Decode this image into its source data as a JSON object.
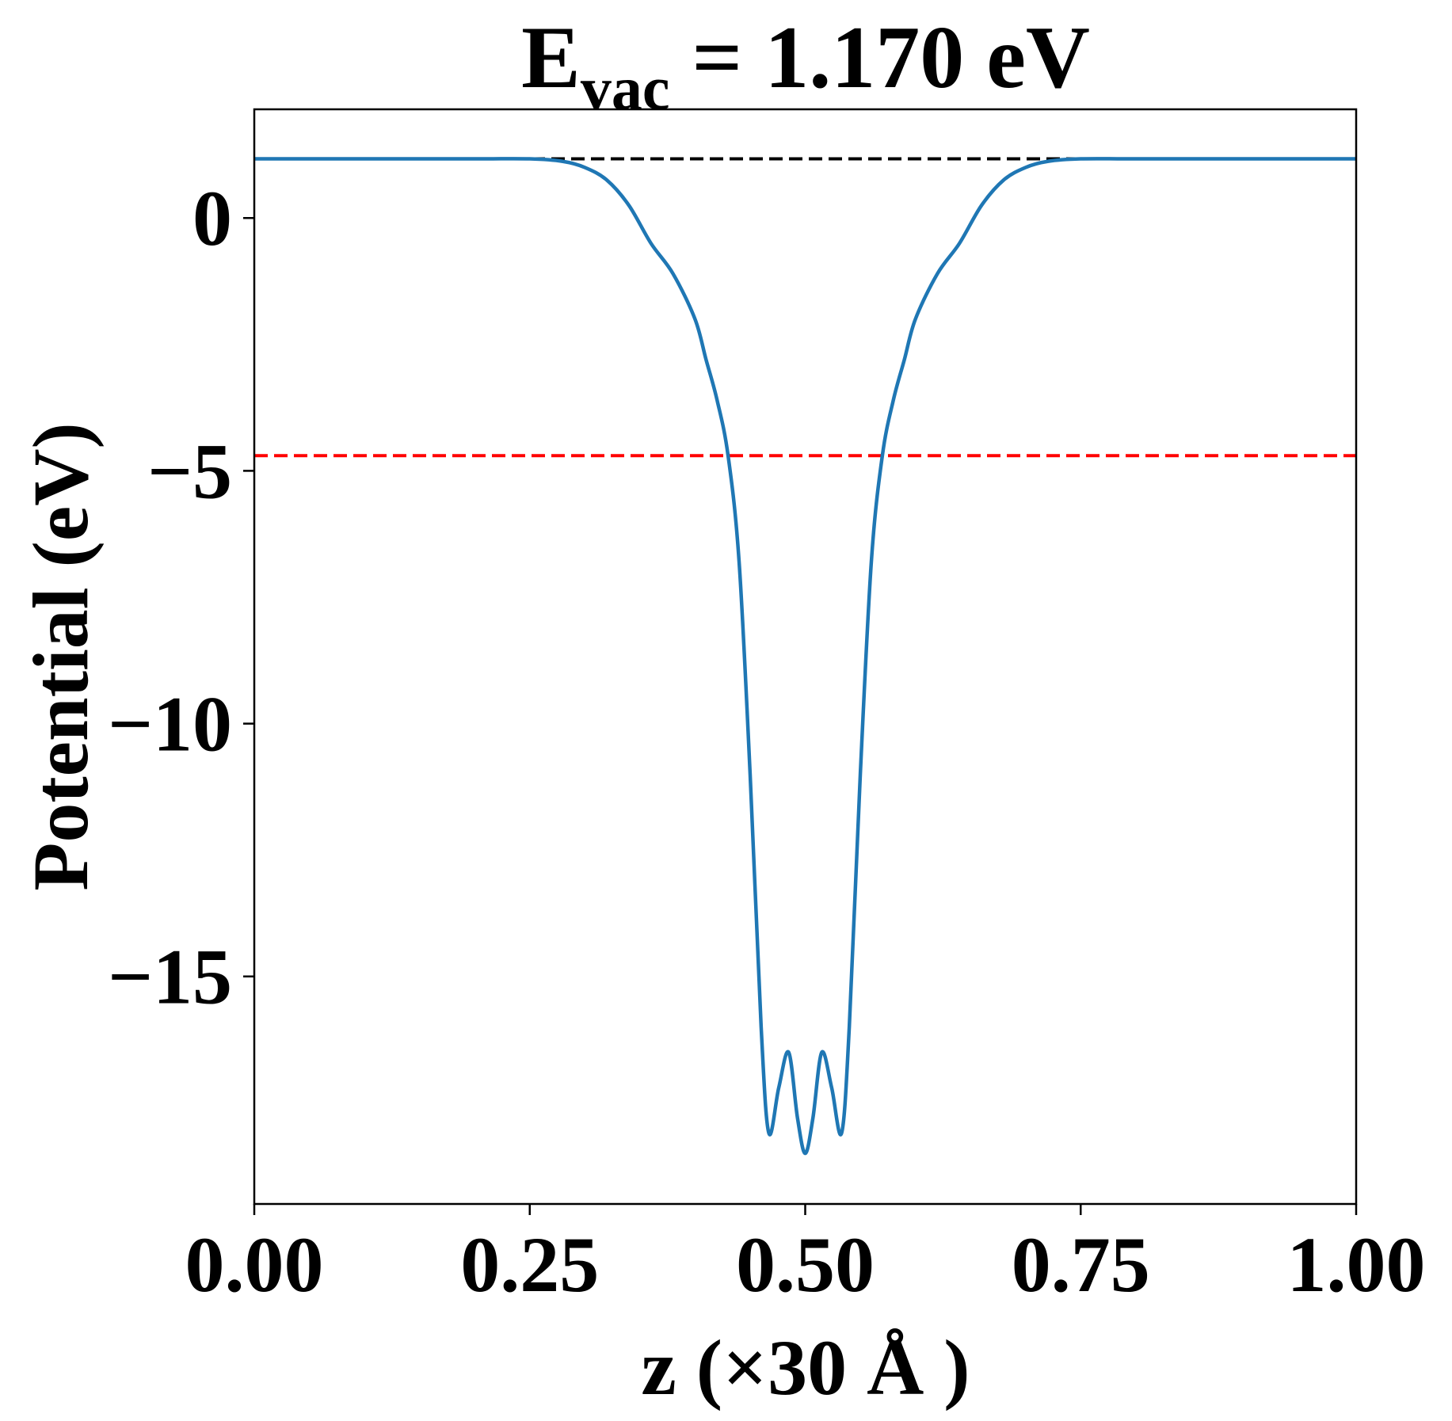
{
  "chart_data": {
    "type": "line",
    "title": {
      "main": "E",
      "subscript": "vac",
      "rest": " = 1.170 eV"
    },
    "xlabel": "z (×30 Å )",
    "ylabel": "Potential (eV)",
    "xlim": [
      0,
      1
    ],
    "ylim": [
      -19.5,
      2.15
    ],
    "xticks": [
      0,
      0.25,
      0.5,
      0.75,
      1.0
    ],
    "xtick_labels": [
      "0.00",
      "0.25",
      "0.50",
      "0.75",
      "1.00"
    ],
    "yticks": [
      0,
      -5,
      -10,
      -15
    ],
    "ytick_labels": [
      "0",
      "−5",
      "−10",
      "−15"
    ],
    "grid": false,
    "series": [
      {
        "color": "#1f77b4",
        "x": [
          0.0,
          0.1,
          0.2,
          0.25,
          0.28,
          0.3,
          0.32,
          0.34,
          0.36,
          0.38,
          0.4,
          0.41,
          0.42,
          0.43,
          0.44,
          0.45,
          0.46,
          0.467,
          0.476,
          0.485,
          0.493,
          0.5,
          0.507,
          0.515,
          0.524,
          0.533,
          0.54,
          0.55,
          0.56,
          0.57,
          0.58,
          0.59,
          0.6,
          0.62,
          0.64,
          0.66,
          0.68,
          0.7,
          0.72,
          0.75,
          0.8,
          0.9,
          1.0
        ],
        "y": [
          1.17,
          1.17,
          1.17,
          1.17,
          1.12,
          1.0,
          0.75,
          0.25,
          -0.5,
          -1.1,
          -2.0,
          -2.8,
          -3.6,
          -4.7,
          -6.8,
          -11.0,
          -16.0,
          -18.1,
          -17.2,
          -16.5,
          -17.8,
          -18.5,
          -17.8,
          -16.5,
          -17.2,
          -18.1,
          -16.0,
          -11.0,
          -6.8,
          -4.7,
          -3.6,
          -2.8,
          -2.0,
          -1.1,
          -0.5,
          0.25,
          0.75,
          1.0,
          1.12,
          1.17,
          1.17,
          1.17,
          1.17
        ]
      }
    ],
    "hlines": [
      {
        "y": 1.17,
        "color": "#000000",
        "style": "dashed"
      },
      {
        "y": -4.7,
        "color": "#ff0000",
        "style": "dashed"
      }
    ]
  }
}
